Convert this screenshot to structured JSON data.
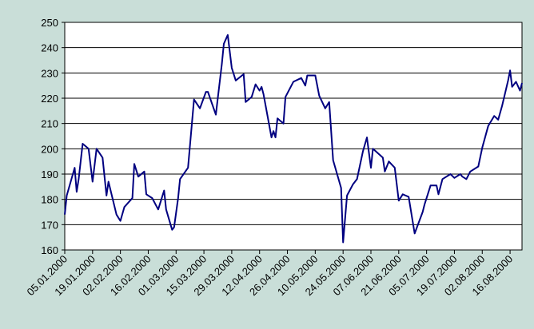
{
  "chart_data": {
    "type": "line",
    "x": [
      "2000-01-05",
      "2000-01-06",
      "2000-01-10",
      "2000-01-11",
      "2000-01-12",
      "2000-01-14",
      "2000-01-17",
      "2000-01-19",
      "2000-01-21",
      "2000-01-24",
      "2000-01-26",
      "2000-01-27",
      "2000-01-31",
      "2000-02-02",
      "2000-02-04",
      "2000-02-08",
      "2000-02-09",
      "2000-02-11",
      "2000-02-14",
      "2000-02-15",
      "2000-02-18",
      "2000-02-21",
      "2000-02-24",
      "2000-02-25",
      "2000-02-28",
      "2000-02-29",
      "2000-03-02",
      "2000-03-03",
      "2000-03-07",
      "2000-03-10",
      "2000-03-13",
      "2000-03-16",
      "2000-03-17",
      "2000-03-21",
      "2000-03-24",
      "2000-03-25",
      "2000-03-27",
      "2000-03-29",
      "2000-03-31",
      "2000-04-04",
      "2000-04-05",
      "2000-04-08",
      "2000-04-10",
      "2000-04-12",
      "2000-04-13",
      "2000-04-14",
      "2000-04-18",
      "2000-04-19",
      "2000-04-20",
      "2000-04-21",
      "2000-04-24",
      "2000-04-25",
      "2000-04-29",
      "2000-05-03",
      "2000-05-05",
      "2000-05-06",
      "2000-05-10",
      "2000-05-12",
      "2000-05-15",
      "2000-05-17",
      "2000-05-19",
      "2000-05-23",
      "2000-05-24",
      "2000-05-26",
      "2000-05-29",
      "2000-05-31",
      "2000-06-03",
      "2000-06-05",
      "2000-06-07",
      "2000-06-08",
      "2000-06-13",
      "2000-06-14",
      "2000-06-16",
      "2000-06-19",
      "2000-06-21",
      "2000-06-23",
      "2000-06-26",
      "2000-06-29",
      "2000-07-03",
      "2000-07-04",
      "2000-07-07",
      "2000-07-10",
      "2000-07-11",
      "2000-07-13",
      "2000-07-17",
      "2000-07-19",
      "2000-07-22",
      "2000-07-23",
      "2000-07-25",
      "2000-07-27",
      "2000-07-31",
      "2000-08-02",
      "2000-08-05",
      "2000-08-08",
      "2000-08-10",
      "2000-08-12",
      "2000-08-15",
      "2000-08-16",
      "2000-08-17",
      "2000-08-19",
      "2000-08-21",
      "2000-08-22"
    ],
    "series": [
      {
        "color": "#000080",
        "values": [
          174,
          181.5,
          192.5,
          183,
          188,
          202,
          200,
          187,
          200,
          196.5,
          181.5,
          187,
          174,
          171.5,
          177,
          180.5,
          194,
          189,
          191,
          182,
          180.5,
          176,
          183.5,
          176,
          168,
          169,
          180.5,
          188,
          192.5,
          219.5,
          216,
          222.5,
          222.5,
          213.5,
          233.5,
          241.5,
          245,
          232,
          227,
          229.5,
          218.5,
          220.5,
          225.5,
          223,
          224.5,
          221.5,
          204.5,
          207,
          204.5,
          212,
          210,
          220.5,
          226.5,
          228,
          225,
          229,
          229,
          221,
          216,
          218.5,
          195.5,
          184.5,
          163,
          181.5,
          186,
          188,
          199,
          204.5,
          192.5,
          200,
          196.5,
          191,
          195,
          192.5,
          179.5,
          182,
          181,
          166.5,
          175,
          178,
          185.5,
          185.5,
          182,
          188,
          190,
          188.5,
          190,
          189,
          188,
          191,
          193,
          200.5,
          209,
          213,
          211.5,
          217,
          227,
          231,
          224.5,
          226.5,
          223,
          226
        ]
      }
    ],
    "xlim": [
      "2000-01-05",
      "2000-08-22"
    ],
    "xticks": [
      {
        "value": "2000-01-05",
        "label": "05.01.2000"
      },
      {
        "value": "2000-01-19",
        "label": "19.01.2000"
      },
      {
        "value": "2000-02-02",
        "label": "02.02.2000"
      },
      {
        "value": "2000-02-16",
        "label": "16.02.2000"
      },
      {
        "value": "2000-03-01",
        "label": "01.03.2000"
      },
      {
        "value": "2000-03-15",
        "label": "15.03.2000"
      },
      {
        "value": "2000-03-29",
        "label": "29.03.2000"
      },
      {
        "value": "2000-04-12",
        "label": "12.04.2000"
      },
      {
        "value": "2000-04-26",
        "label": "26.04.2000"
      },
      {
        "value": "2000-05-10",
        "label": "10.05.2000"
      },
      {
        "value": "2000-05-24",
        "label": "24.05.2000"
      },
      {
        "value": "2000-06-07",
        "label": "07.06.2000"
      },
      {
        "value": "2000-06-21",
        "label": "21.06.2000"
      },
      {
        "value": "2000-07-05",
        "label": "05.07.2000"
      },
      {
        "value": "2000-07-19",
        "label": "19.07.2000"
      },
      {
        "value": "2000-08-02",
        "label": "02.08.2000"
      },
      {
        "value": "2000-08-16",
        "label": "16.08.2000"
      }
    ],
    "ylim": [
      160,
      250
    ],
    "yticks": [
      160,
      170,
      180,
      190,
      200,
      210,
      220,
      230,
      240,
      250
    ],
    "grid": true
  }
}
